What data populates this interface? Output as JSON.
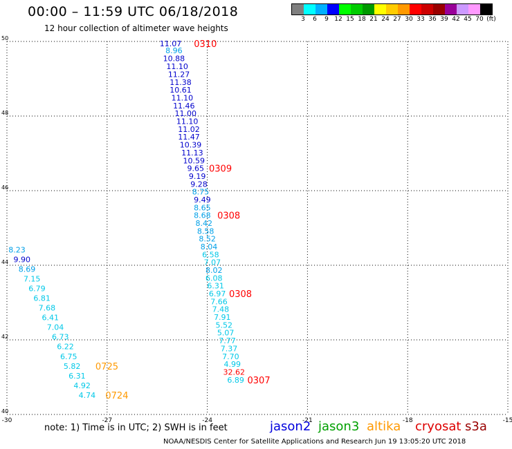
{
  "header": {
    "title": "00:00 – 11:59 UTC 06/18/2018",
    "subtitle": "12 hour collection of altimeter wave heights"
  },
  "color_scale": {
    "colors": [
      "#7f7f7f",
      "#00ffff",
      "#00b0ff",
      "#0000ff",
      "#00ff00",
      "#00cc00",
      "#009900",
      "#ffff00",
      "#ffcc00",
      "#ff9900",
      "#ff0000",
      "#cc0000",
      "#990000",
      "#990099",
      "#cc99ff",
      "#ff99ff",
      "#000000"
    ],
    "labels": [
      "3",
      "6",
      "9",
      "12",
      "15",
      "18",
      "21",
      "24",
      "27",
      "30",
      "33",
      "36",
      "39",
      "42",
      "45",
      "70",
      "(ft)"
    ]
  },
  "chart_data": {
    "type": "scatter",
    "title": "12 hour collection of altimeter wave heights",
    "xlim": [
      -30,
      -15
    ],
    "ylim": [
      40,
      50
    ],
    "x_ticks": [
      "-30",
      "-27",
      "-24",
      "-21",
      "-18",
      "-15"
    ],
    "y_ticks": [
      "40",
      "42",
      "44",
      "46",
      "48",
      "50"
    ],
    "grid": true,
    "units": "ft",
    "points": [
      {
        "lon": -25.1,
        "lat": 49.94,
        "v": "11.07",
        "c": "#0000cc"
      },
      {
        "lon": -25.0,
        "lat": 49.76,
        "v": "8.96",
        "c": "#00a0e8"
      },
      {
        "lon": -25.0,
        "lat": 49.55,
        "v": "10.88",
        "c": "#0000cc"
      },
      {
        "lon": -24.9,
        "lat": 49.33,
        "v": "11.10",
        "c": "#0000cc"
      },
      {
        "lon": -24.85,
        "lat": 49.12,
        "v": "11.27",
        "c": "#0000cc"
      },
      {
        "lon": -24.8,
        "lat": 48.91,
        "v": "11.38",
        "c": "#0000cc"
      },
      {
        "lon": -24.8,
        "lat": 48.7,
        "v": "10.61",
        "c": "#0000cc"
      },
      {
        "lon": -24.75,
        "lat": 48.49,
        "v": "11.10",
        "c": "#0000cc"
      },
      {
        "lon": -24.7,
        "lat": 48.28,
        "v": "11.46",
        "c": "#0000cc"
      },
      {
        "lon": -24.65,
        "lat": 48.07,
        "v": "11.00",
        "c": "#0000cc"
      },
      {
        "lon": -24.6,
        "lat": 47.86,
        "v": "11.10",
        "c": "#0000cc"
      },
      {
        "lon": -24.55,
        "lat": 47.65,
        "v": "11.02",
        "c": "#0000cc"
      },
      {
        "lon": -24.55,
        "lat": 47.44,
        "v": "11.47",
        "c": "#0000cc"
      },
      {
        "lon": -24.5,
        "lat": 47.23,
        "v": "10.39",
        "c": "#0000cc"
      },
      {
        "lon": -24.45,
        "lat": 47.02,
        "v": "11.13",
        "c": "#0000cc"
      },
      {
        "lon": -24.4,
        "lat": 46.81,
        "v": "10.59",
        "c": "#0000cc"
      },
      {
        "lon": -24.35,
        "lat": 46.6,
        "v": "9.65",
        "c": "#0000cc"
      },
      {
        "lon": -24.3,
        "lat": 46.39,
        "v": "9.19",
        "c": "#0000cc"
      },
      {
        "lon": -24.25,
        "lat": 46.18,
        "v": "9.28",
        "c": "#0000cc"
      },
      {
        "lon": -24.2,
        "lat": 45.97,
        "v": "8.75",
        "c": "#00a0e8"
      },
      {
        "lon": -24.15,
        "lat": 45.76,
        "v": "9.49",
        "c": "#0000cc"
      },
      {
        "lon": -24.15,
        "lat": 45.55,
        "v": "8.65",
        "c": "#00a0e8"
      },
      {
        "lon": -24.15,
        "lat": 45.34,
        "v": "8.68",
        "c": "#00a0e8"
      },
      {
        "lon": -24.1,
        "lat": 45.13,
        "v": "8.42",
        "c": "#00a0e8"
      },
      {
        "lon": -24.05,
        "lat": 44.92,
        "v": "8.58",
        "c": "#00a0e8"
      },
      {
        "lon": -24.0,
        "lat": 44.71,
        "v": "8.52",
        "c": "#00a0e8"
      },
      {
        "lon": -23.95,
        "lat": 44.5,
        "v": "8.04",
        "c": "#00a0e8"
      },
      {
        "lon": -23.9,
        "lat": 44.29,
        "v": "6.58",
        "c": "#00c8e8"
      },
      {
        "lon": -23.85,
        "lat": 44.08,
        "v": "7.07",
        "c": "#00c8e8"
      },
      {
        "lon": -23.8,
        "lat": 43.87,
        "v": "8.02",
        "c": "#00a0e8"
      },
      {
        "lon": -23.8,
        "lat": 43.66,
        "v": "6.08",
        "c": "#00c8e8"
      },
      {
        "lon": -23.75,
        "lat": 43.45,
        "v": "6.31",
        "c": "#00c8e8"
      },
      {
        "lon": -23.7,
        "lat": 43.24,
        "v": "6.97",
        "c": "#00c8e8"
      },
      {
        "lon": -23.65,
        "lat": 43.03,
        "v": "7.66",
        "c": "#00c8e8"
      },
      {
        "lon": -23.6,
        "lat": 42.82,
        "v": "7.48",
        "c": "#00c8e8"
      },
      {
        "lon": -23.55,
        "lat": 42.61,
        "v": "7.91",
        "c": "#00c8e8"
      },
      {
        "lon": -23.5,
        "lat": 42.4,
        "v": "5.52",
        "c": "#00c8e8"
      },
      {
        "lon": -23.45,
        "lat": 42.19,
        "v": "5.07",
        "c": "#00c8e8"
      },
      {
        "lon": -23.4,
        "lat": 41.98,
        "v": "7.77",
        "c": "#00c8e8"
      },
      {
        "lon": -23.35,
        "lat": 41.77,
        "v": "7.37",
        "c": "#00c8e8"
      },
      {
        "lon": -23.3,
        "lat": 41.56,
        "v": "7.70",
        "c": "#00c8e8"
      },
      {
        "lon": -23.25,
        "lat": 41.35,
        "v": "4.99",
        "c": "#00c8e8"
      },
      {
        "lon": -23.2,
        "lat": 41.14,
        "v": "32.62",
        "c": "#ff0000"
      },
      {
        "lon": -23.15,
        "lat": 40.93,
        "v": "6.89",
        "c": "#00c8e8"
      },
      {
        "lon": -29.7,
        "lat": 44.42,
        "v": "8.23",
        "c": "#00a0e8"
      },
      {
        "lon": -29.55,
        "lat": 44.16,
        "v": "9.90",
        "c": "#0000cc"
      },
      {
        "lon": -29.4,
        "lat": 43.9,
        "v": "8.69",
        "c": "#00a0e8"
      },
      {
        "lon": -29.25,
        "lat": 43.64,
        "v": "7.15",
        "c": "#00c8e8"
      },
      {
        "lon": -29.1,
        "lat": 43.38,
        "v": "6.79",
        "c": "#00c8e8"
      },
      {
        "lon": -28.95,
        "lat": 43.12,
        "v": "6.81",
        "c": "#00c8e8"
      },
      {
        "lon": -28.8,
        "lat": 42.86,
        "v": "7.68",
        "c": "#00c8e8"
      },
      {
        "lon": -28.7,
        "lat": 42.6,
        "v": "6.41",
        "c": "#00c8e8"
      },
      {
        "lon": -28.55,
        "lat": 42.34,
        "v": "7.04",
        "c": "#00c8e8"
      },
      {
        "lon": -28.4,
        "lat": 42.08,
        "v": "6.73",
        "c": "#00c8e8"
      },
      {
        "lon": -28.25,
        "lat": 41.82,
        "v": "6.22",
        "c": "#00c8e8"
      },
      {
        "lon": -28.15,
        "lat": 41.56,
        "v": "6.75",
        "c": "#00c8e8"
      },
      {
        "lon": -28.05,
        "lat": 41.3,
        "v": "5.82",
        "c": "#00c8e8"
      },
      {
        "lon": -27.9,
        "lat": 41.04,
        "v": "6.31",
        "c": "#00c8e8"
      },
      {
        "lon": -27.75,
        "lat": 40.78,
        "v": "4.92",
        "c": "#00c8e8"
      },
      {
        "lon": -27.6,
        "lat": 40.52,
        "v": "4.74",
        "c": "#00c8e8"
      }
    ],
    "pass_labels": [
      {
        "lon": -24.4,
        "lat": 49.94,
        "v": "0310",
        "c": "#ff0000"
      },
      {
        "lon": -23.95,
        "lat": 46.6,
        "v": "0309",
        "c": "#ff0000"
      },
      {
        "lon": -23.7,
        "lat": 45.34,
        "v": "0308",
        "c": "#ff0000"
      },
      {
        "lon": -23.35,
        "lat": 43.24,
        "v": "0308",
        "c": "#ff0000"
      },
      {
        "lon": -22.8,
        "lat": 40.93,
        "v": "0307",
        "c": "#ff0000"
      },
      {
        "lon": -27.35,
        "lat": 41.3,
        "v": "0725",
        "c": "#ff9900"
      },
      {
        "lon": -27.05,
        "lat": 40.52,
        "v": "0724",
        "c": "#ff9900"
      }
    ]
  },
  "footer": {
    "note": "note: 1) Time is in UTC; 2) SWH is in feet",
    "credit": "NOAA/NESDIS Center for Satellite Applications and Research    Jun 19 13:05:20 UTC 2018"
  },
  "satellites": [
    {
      "name": "jason2",
      "color": "#0000dd"
    },
    {
      "name": "jason3",
      "color": "#00a000"
    },
    {
      "name": "altika",
      "color": "#ff9900"
    },
    {
      "name": "cryosat",
      "color": "#dd0000"
    },
    {
      "name": "s3a",
      "color": "#990000"
    }
  ]
}
